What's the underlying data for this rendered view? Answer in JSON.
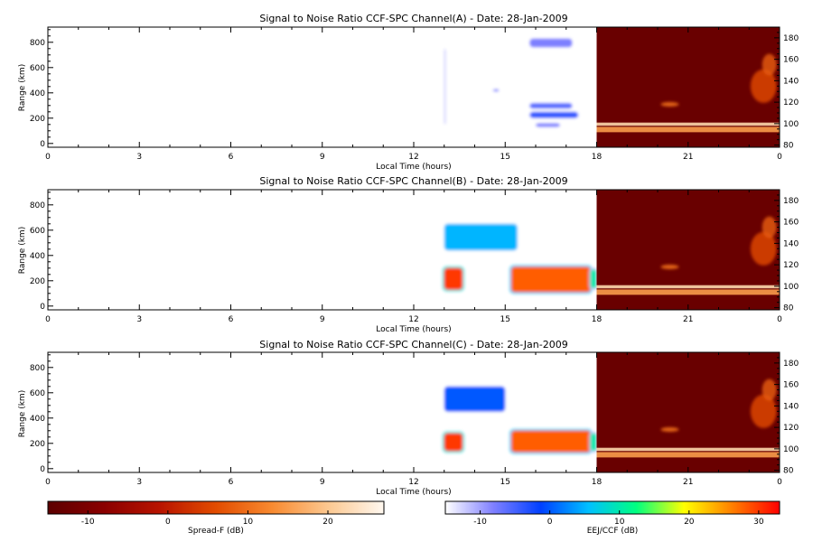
{
  "chart_data": [
    {
      "type": "heatmap",
      "title": "Signal to Noise Ratio CCF-SPC Channel(A) - Date: 28-Jan-2009",
      "xlabel": "Local Time (hours)",
      "ylabel": "Range (km)",
      "x_ticks": [
        "0",
        "3",
        "6",
        "9",
        "12",
        "15",
        "18",
        "21",
        "0"
      ],
      "xlim": [
        0,
        24
      ],
      "ylim": [
        -30,
        920
      ],
      "y_ticks": [
        "0",
        "200",
        "400",
        "600",
        "800"
      ],
      "right_ylim": [
        78,
        190
      ],
      "right_y_ticks": [
        "80",
        "100",
        "120",
        "140",
        "160",
        "180"
      ],
      "eej_blobs": [
        {
          "t0": 15.8,
          "t1": 17.2,
          "r0": 760,
          "r1": 830,
          "level": -8
        },
        {
          "t0": 15.8,
          "t1": 17.2,
          "r0": 275,
          "r1": 320,
          "level": -6
        },
        {
          "t0": 15.8,
          "t1": 17.4,
          "r0": 200,
          "r1": 250,
          "level": -4
        },
        {
          "t0": 16.0,
          "t1": 16.8,
          "r0": 130,
          "r1": 160,
          "level": -8
        },
        {
          "t0": 14.6,
          "t1": 14.8,
          "r0": 410,
          "r1": 430,
          "level": -8
        },
        {
          "t0": 13.0,
          "t1": 13.05,
          "r0": 150,
          "r1": 750,
          "level": -12
        }
      ],
      "spread_f_layers": [
        {
          "r0": 92,
          "r1": 97,
          "level": 15
        },
        {
          "r0": 98,
          "r1": 101,
          "level": 22
        }
      ]
    },
    {
      "type": "heatmap",
      "title": "Signal to Noise Ratio CCF-SPC Channel(B) - Date: 28-Jan-2009",
      "xlabel": "Local Time (hours)",
      "ylabel": "Range (km)",
      "x_ticks": [
        "0",
        "3",
        "6",
        "9",
        "12",
        "15",
        "18",
        "21",
        "0"
      ],
      "xlim": [
        0,
        24
      ],
      "ylim": [
        -30,
        920
      ],
      "y_ticks": [
        "0",
        "200",
        "400",
        "600",
        "800"
      ],
      "right_ylim": [
        78,
        190
      ],
      "right_y_ticks": [
        "80",
        "100",
        "120",
        "140",
        "160",
        "180"
      ],
      "eej_blobs": [
        {
          "t0": 13.0,
          "t1": 15.4,
          "r0": 440,
          "r1": 650,
          "level": 5
        },
        {
          "t0": 13.0,
          "t1": 13.6,
          "r0": 130,
          "r1": 300,
          "level": 30
        },
        {
          "t0": 15.2,
          "t1": 17.8,
          "r0": 110,
          "r1": 310,
          "level": 28
        },
        {
          "t0": 17.8,
          "t1": 18.0,
          "r0": 140,
          "r1": 290,
          "level": 10
        }
      ],
      "spread_f_layers": [
        {
          "r0": 92,
          "r1": 97,
          "level": 15
        },
        {
          "r0": 98,
          "r1": 101,
          "level": 22
        }
      ]
    },
    {
      "type": "heatmap",
      "title": "Signal to Noise Ratio CCF-SPC Channel(C) - Date: 28-Jan-2009",
      "xlabel": "Local Time (hours)",
      "ylabel": "Range (km)",
      "x_ticks": [
        "0",
        "3",
        "6",
        "9",
        "12",
        "15",
        "18",
        "21",
        "0"
      ],
      "xlim": [
        0,
        24
      ],
      "ylim": [
        -30,
        920
      ],
      "y_ticks": [
        "0",
        "200",
        "400",
        "600",
        "800"
      ],
      "right_ylim": [
        78,
        190
      ],
      "right_y_ticks": [
        "80",
        "100",
        "120",
        "140",
        "160",
        "180"
      ],
      "eej_blobs": [
        {
          "t0": 13.0,
          "t1": 15.0,
          "r0": 450,
          "r1": 650,
          "level": 0
        },
        {
          "t0": 13.0,
          "t1": 13.6,
          "r0": 140,
          "r1": 280,
          "level": 30
        },
        {
          "t0": 15.2,
          "t1": 17.8,
          "r0": 130,
          "r1": 300,
          "level": 28
        },
        {
          "t0": 17.8,
          "t1": 18.0,
          "r0": 140,
          "r1": 280,
          "level": 10
        }
      ],
      "spread_f_layers": [
        {
          "r0": 92,
          "r1": 97,
          "level": 15
        },
        {
          "r0": 98,
          "r1": 101,
          "level": 22
        }
      ]
    }
  ],
  "colorbars": [
    {
      "label": "Spread-F (dB)",
      "ticks": [
        "-10",
        "0",
        "10",
        "20"
      ],
      "range": [
        -15,
        27
      ],
      "colors": [
        "#5c0000",
        "#8a0000",
        "#b81400",
        "#e24c00",
        "#f88a30",
        "#fcc890",
        "#fff8f0"
      ]
    },
    {
      "label": "EEJ/CCF (dB)",
      "ticks": [
        "-10",
        "0",
        "10",
        "20",
        "30"
      ],
      "range": [
        -15,
        33
      ],
      "colors": [
        "#ffffff",
        "#8080ff",
        "#0040ff",
        "#00c0ff",
        "#00ff80",
        "#ffff00",
        "#ff8000",
        "#ff0000"
      ]
    }
  ]
}
